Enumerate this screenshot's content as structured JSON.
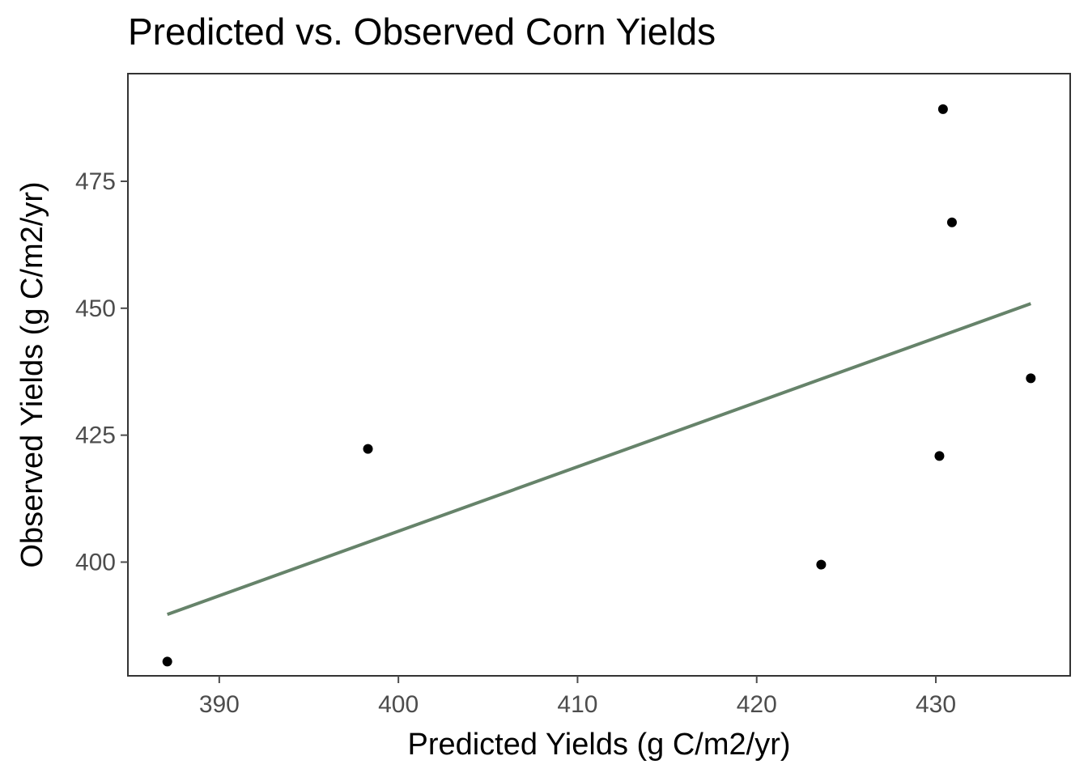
{
  "chart_data": {
    "type": "scatter",
    "title": "Predicted vs. Observed Corn Yields",
    "xlabel": "Predicted Yields (g C/m2/yr)",
    "ylabel": "Observed Yields (g C/m2/yr)",
    "xlim": [
      384.9,
      437.5
    ],
    "ylim": [
      377.6,
      496.2
    ],
    "x_ticks": [
      390,
      400,
      410,
      420,
      430
    ],
    "y_ticks": [
      400,
      425,
      450,
      475
    ],
    "points": [
      {
        "x": 387.1,
        "y": 380.4
      },
      {
        "x": 398.3,
        "y": 422.3
      },
      {
        "x": 423.6,
        "y": 399.5
      },
      {
        "x": 430.2,
        "y": 420.9
      },
      {
        "x": 430.4,
        "y": 489.2
      },
      {
        "x": 430.9,
        "y": 466.9
      },
      {
        "x": 435.3,
        "y": 436.2
      }
    ],
    "fit_line": {
      "x": [
        387.1,
        435.3
      ],
      "y": [
        389.7,
        450.9
      ]
    },
    "grid": false,
    "colors": {
      "points": "#000000",
      "fit_line": "#66836a",
      "panel_border": "#333333",
      "ticks": "#4d4d4d"
    }
  }
}
